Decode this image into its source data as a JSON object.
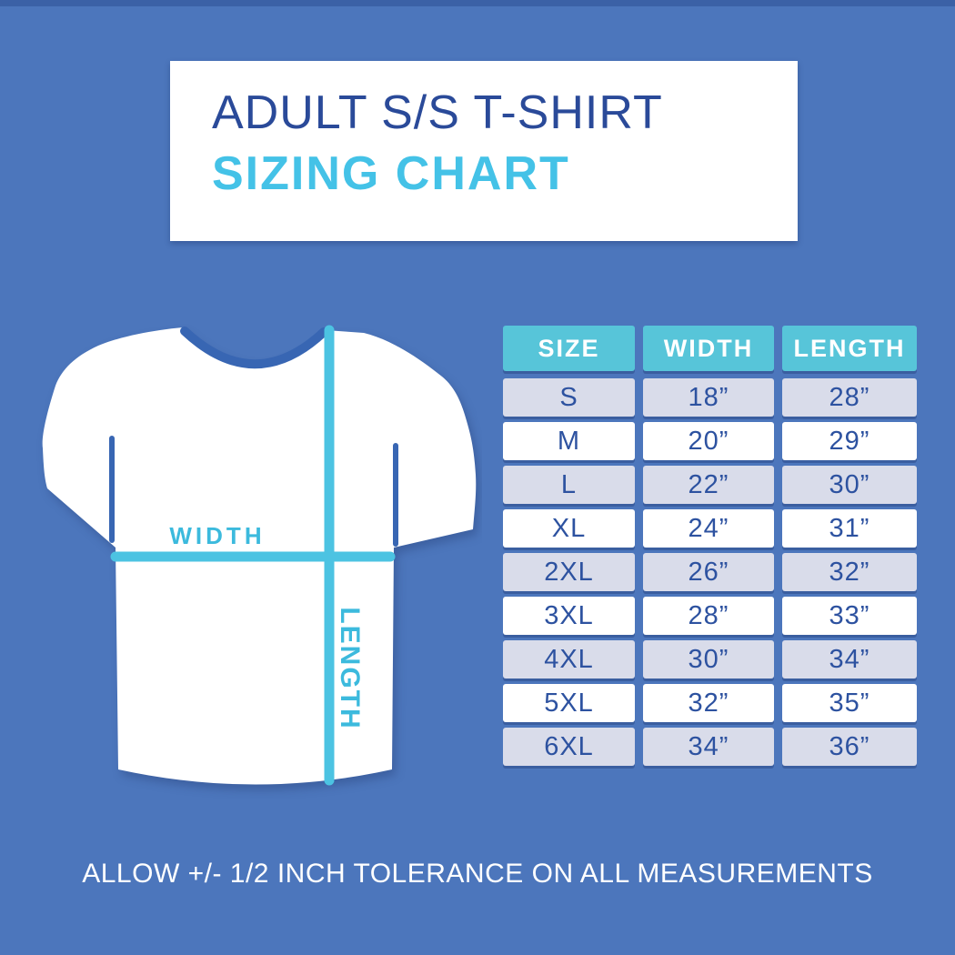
{
  "header": {
    "title": "ADULT S/S T-SHIRT",
    "subtitle": "SIZING CHART"
  },
  "diagram": {
    "width_label": "WIDTH",
    "length_label": "LENGTH"
  },
  "chart_data": {
    "type": "table",
    "title": "Adult S/S T-Shirt Sizing Chart",
    "columns": [
      "SIZE",
      "WIDTH",
      "LENGTH"
    ],
    "rows": [
      [
        "S",
        "18”",
        "28”"
      ],
      [
        "M",
        "20”",
        "29”"
      ],
      [
        "L",
        "22”",
        "30”"
      ],
      [
        "XL",
        "24”",
        "31”"
      ],
      [
        "2XL",
        "26”",
        "32”"
      ],
      [
        "3XL",
        "28”",
        "33”"
      ],
      [
        "4XL",
        "30”",
        "34”"
      ],
      [
        "5XL",
        "32”",
        "35”"
      ],
      [
        "6XL",
        "34”",
        "36”"
      ]
    ],
    "units": "inches"
  },
  "footer": {
    "note": "ALLOW +/- 1/2 INCH TOLERANCE ON ALL MEASUREMENTS"
  },
  "palette": {
    "background_blue": "#4c76bc",
    "top_edge_blue": "#3b61a6",
    "title_navy": "#2a4a99",
    "accent_cyan": "#44c2e7",
    "table_header_teal": "#57c5d9",
    "row_lavender": "#d9dcea",
    "row_text_blue": "#2d52a0",
    "collar_seam_blue": "#3866b3",
    "measure_line_cyan": "#4cc3e2",
    "shirt_white": "#ffffff"
  }
}
